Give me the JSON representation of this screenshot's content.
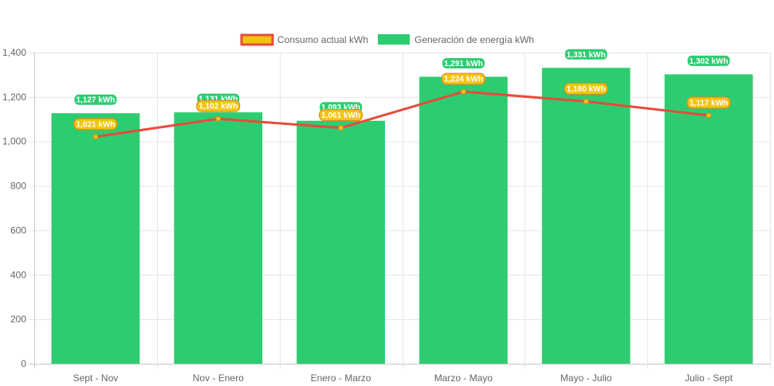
{
  "chart_data": {
    "type": "bar",
    "categories": [
      "Sept - Nov",
      "Nov - Enero",
      "Enero - Marzo",
      "Marzo - Mayo",
      "Mayo - Julio",
      "Julio - Sept"
    ],
    "series": [
      {
        "name": "Generación de energía kWh",
        "kind": "bar",
        "color": "#2ecc71",
        "values": [
          1127,
          1131,
          1093,
          1291,
          1331,
          1302
        ],
        "labels": [
          "1,127 kWh",
          "1,131 kWh",
          "1,093 kWh",
          "1,291 kWh",
          "1,331 kWh",
          "1,302 kWh"
        ]
      },
      {
        "name": "Consumo actual kWh",
        "kind": "line",
        "color": "#e74c3c",
        "point_color": "#f1c40f",
        "values": [
          1021,
          1102,
          1061,
          1224,
          1180,
          1117
        ],
        "labels": [
          "1,021 kWh",
          "1,102 kWh",
          "1,061 kWh",
          "1,224 kWh",
          "1,180 kWh",
          "1,117 kWh"
        ]
      }
    ],
    "legend_order": [
      "Consumo actual kWh",
      "Generación de energía kWh"
    ],
    "yticks": [
      "0",
      "200",
      "400",
      "600",
      "800",
      "1,000",
      "1,200",
      "1,400"
    ],
    "ytick_values": [
      0,
      200,
      400,
      600,
      800,
      1000,
      1200,
      1400
    ],
    "ylim": [
      0,
      1400
    ],
    "grid": true,
    "legend_position": "top",
    "title": "",
    "xlabel": "",
    "ylabel": ""
  }
}
